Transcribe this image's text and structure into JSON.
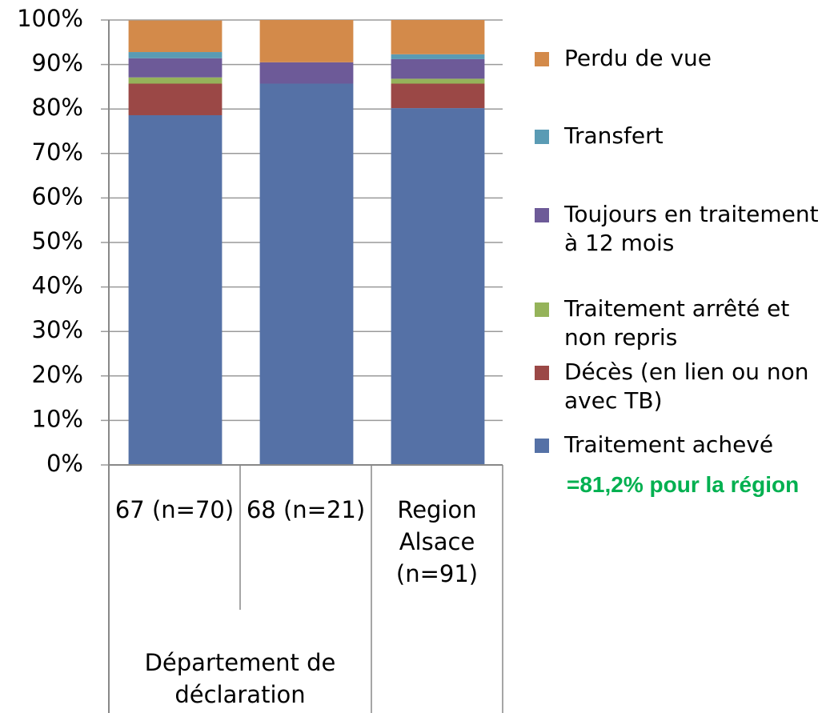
{
  "chart_data": {
    "type": "stacked_bar",
    "categories": [
      "67 (n=70)",
      "68 (n=21)",
      "Region Alsace (n=91)"
    ],
    "x_group_label": "Département de déclaration",
    "series": [
      {
        "name": "Traitement achevé",
        "color": "#5571a6",
        "values": [
          78.6,
          85.7,
          80.2
        ]
      },
      {
        "name": "Décès (en lien ou non avec TB)",
        "color": "#9b4846",
        "values": [
          7.1,
          0,
          5.5
        ]
      },
      {
        "name": "Traitement arrêté et non repris",
        "color": "#95b35a",
        "values": [
          1.4,
          0,
          1.1
        ]
      },
      {
        "name": "Toujours en traitement à 12 mois",
        "color": "#6d5a98",
        "values": [
          4.3,
          4.8,
          4.4
        ]
      },
      {
        "name": "Transfert",
        "color": "#5a9bb4",
        "values": [
          1.4,
          0,
          1.1
        ]
      },
      {
        "name": "Perdu de vue",
        "color": "#d38a4a",
        "values": [
          7.1,
          9.5,
          7.7
        ]
      }
    ],
    "annotation": "=81,2% pour la région",
    "ylim": [
      0,
      100
    ],
    "yticks": [
      {
        "value": 0,
        "label": "0%"
      },
      {
        "value": 10,
        "label": "10%"
      },
      {
        "value": 20,
        "label": "20%"
      },
      {
        "value": 30,
        "label": "30%"
      },
      {
        "value": 40,
        "label": "40%"
      },
      {
        "value": 50,
        "label": "50%"
      },
      {
        "value": 60,
        "label": "60%"
      },
      {
        "value": 70,
        "label": "70%"
      },
      {
        "value": 80,
        "label": "80%"
      },
      {
        "value": 90,
        "label": "90%"
      },
      {
        "value": 100,
        "label": "100%"
      }
    ],
    "grid": true,
    "legend": "right"
  }
}
